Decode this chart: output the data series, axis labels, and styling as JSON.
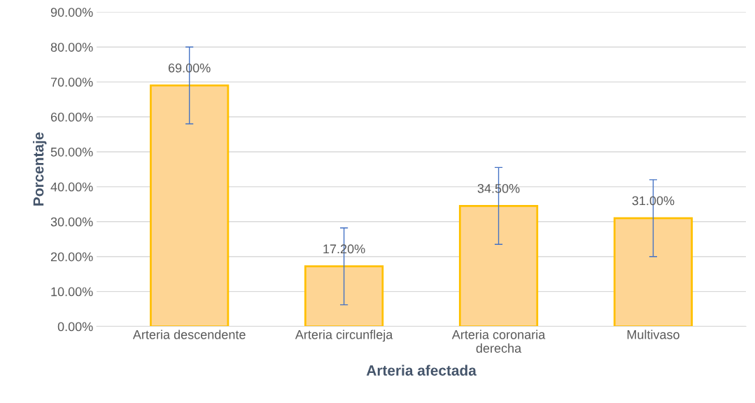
{
  "chart_data": {
    "type": "bar",
    "xlabel": "Arteria afectada",
    "ylabel": "Porcentaje",
    "categories": [
      "Arteria descendente",
      "Arteria circunfleja",
      "Arteria coronaria\nderecha",
      "Multivaso"
    ],
    "values": [
      69.0,
      17.2,
      34.5,
      31.0
    ],
    "errors": [
      11,
      11,
      11,
      11
    ],
    "value_labels": [
      "69.00%",
      "17.20%",
      "34.50%",
      "31.00%"
    ],
    "color": "#fed594",
    "ylim": [
      0,
      90
    ],
    "yticks": [
      {
        "value": 0,
        "label": "0.00%"
      },
      {
        "value": 10,
        "label": "10.00%"
      },
      {
        "value": 20,
        "label": "20.00%"
      },
      {
        "value": 30,
        "label": "30.00%"
      },
      {
        "value": 40,
        "label": "40.00%"
      },
      {
        "value": 50,
        "label": "50.00%"
      },
      {
        "value": 60,
        "label": "60.00%"
      },
      {
        "value": 70,
        "label": "70.00%"
      },
      {
        "value": 80,
        "label": "80.00%"
      },
      {
        "value": 90,
        "label": "90.00%"
      }
    ],
    "grid": "y"
  }
}
